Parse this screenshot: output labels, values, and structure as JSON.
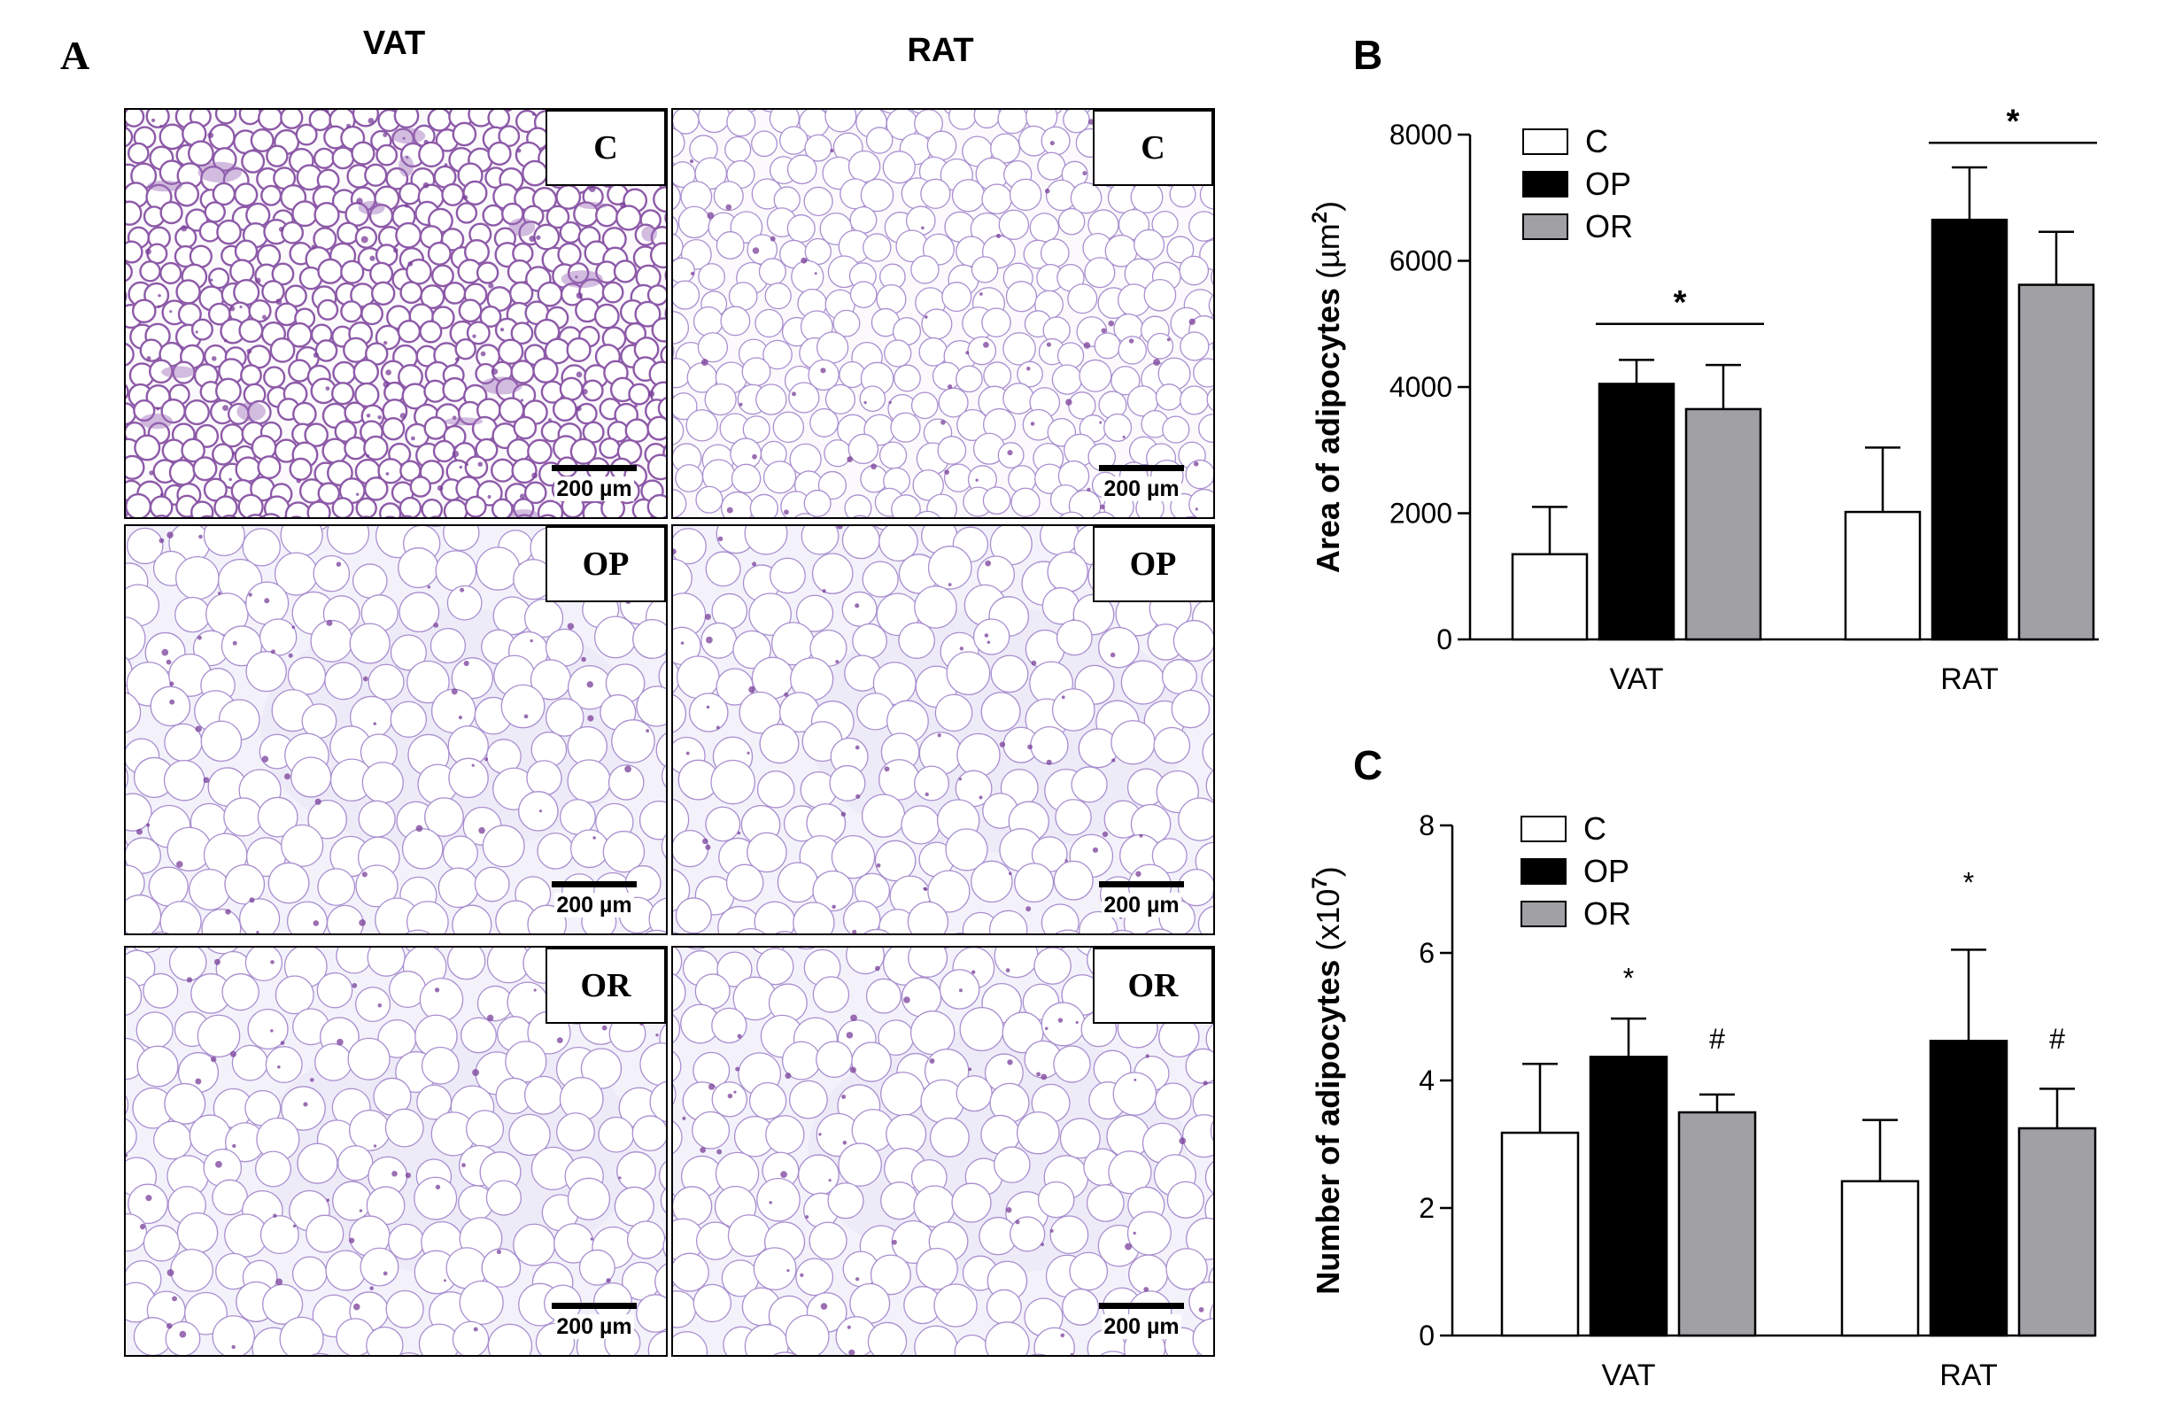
{
  "panel_a": {
    "letter": "A",
    "columns": [
      "VAT",
      "RAT"
    ],
    "tiles": [
      {
        "group": "C",
        "scale": "200 µm",
        "tissue": "VAT"
      },
      {
        "group": "C",
        "scale": "200 µm",
        "tissue": "RAT"
      },
      {
        "group": "OP",
        "scale": "200 µm",
        "tissue": "VAT"
      },
      {
        "group": "OP",
        "scale": "200 µm",
        "tissue": "RAT"
      },
      {
        "group": "OR",
        "scale": "200 µm",
        "tissue": "VAT"
      },
      {
        "group": "OR",
        "scale": "200 µm",
        "tissue": "RAT"
      }
    ]
  },
  "chart_data": [
    {
      "panel": "B",
      "type": "bar",
      "ylabel": "Area of adipocytes",
      "ylabel_unit": "(µm",
      "ylabel_sup": "2",
      "ylabel_close": ")",
      "categories": [
        "VAT",
        "RAT"
      ],
      "ylim": [
        0,
        8000
      ],
      "yticks": [
        0,
        2000,
        4000,
        6000,
        8000
      ],
      "series": [
        {
          "name": "C",
          "color": "#ffffff",
          "values": [
            1350,
            2020
          ],
          "err": [
            750,
            1020
          ]
        },
        {
          "name": "OP",
          "color": "#000000",
          "values": [
            4050,
            6650
          ],
          "err": [
            380,
            830
          ]
        },
        {
          "name": "OR",
          "color": "#a0a0a5",
          "values": [
            3650,
            5620
          ],
          "err": [
            700,
            840
          ]
        }
      ],
      "annotations": [
        {
          "text": "*",
          "category": "VAT",
          "bracket": [
            1,
            2
          ],
          "value": 5000
        },
        {
          "text": "*",
          "category": "RAT",
          "bracket": [
            1,
            2
          ],
          "value": 7870
        }
      ],
      "legend_placement": "top-left"
    },
    {
      "panel": "C",
      "type": "bar",
      "ylabel": "Number of adipocytes",
      "ylabel_unit": "(x10",
      "ylabel_sup": "7",
      "ylabel_close": ")",
      "categories": [
        "VAT",
        "RAT"
      ],
      "ylim": [
        0,
        8
      ],
      "yticks": [
        0,
        2,
        4,
        6,
        8
      ],
      "series": [
        {
          "name": "C",
          "color": "#ffffff",
          "values": [
            3.18,
            2.42
          ],
          "err": [
            1.08,
            0.96
          ]
        },
        {
          "name": "OP",
          "color": "#000000",
          "values": [
            4.37,
            4.62
          ],
          "err": [
            0.6,
            1.43
          ]
        },
        {
          "name": "OR",
          "color": "#a0a0a5",
          "values": [
            3.5,
            3.25
          ],
          "err": [
            0.28,
            0.62
          ]
        }
      ],
      "annotations": [
        {
          "text": "*",
          "category": "VAT",
          "series": 1,
          "value": 5.45
        },
        {
          "text": "#",
          "category": "VAT",
          "series": 2,
          "value": 4.5
        },
        {
          "text": "*",
          "category": "RAT",
          "series": 1,
          "value": 6.95
        },
        {
          "text": "#",
          "category": "RAT",
          "series": 2,
          "value": 4.5
        }
      ],
      "legend_placement": "top-left"
    }
  ]
}
